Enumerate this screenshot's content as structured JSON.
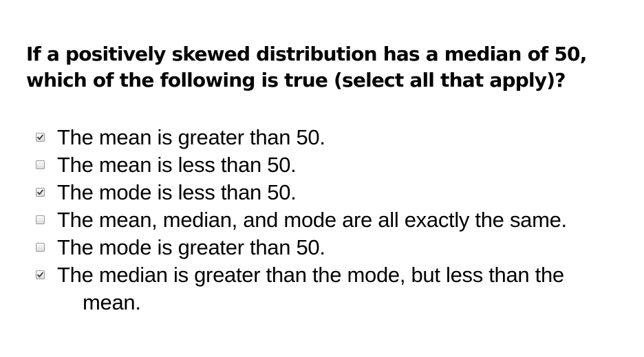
{
  "question": {
    "line1": "If a positively skewed distribution has a median of 50,",
    "line2": "which of the following is true (select all that apply)?"
  },
  "options": [
    {
      "label": "The mean is greater than 50.",
      "checked": true
    },
    {
      "label": "The mean is less than 50.",
      "checked": false
    },
    {
      "label": "The mode is less than 50.",
      "checked": true
    },
    {
      "label": "The mean, median, and mode are all exactly the same.",
      "checked": false
    },
    {
      "label": "The mode is greater than 50.",
      "checked": false
    },
    {
      "label_line1": "The median is greater than the mode, but less than the",
      "label_line2": "mean.",
      "checked": true
    }
  ]
}
